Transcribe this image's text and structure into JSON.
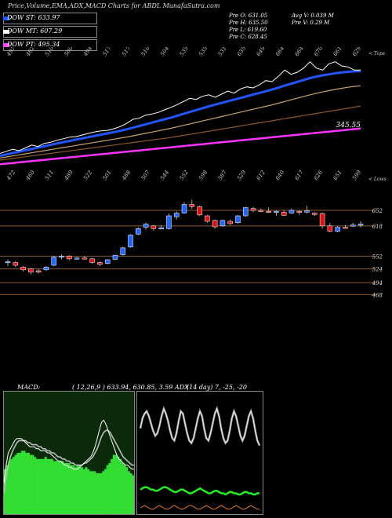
{
  "header": {
    "title": "Price,Volume,EMA,ADX,MACD Charts for ABDL MunafaSutra.com",
    "stats_col1": [
      "Pre O: 631.05",
      "Pre H: 635.50",
      "Pre L: 619.60",
      "Pre C: 628.45"
    ],
    "stats_col2": [
      "Avg V: 0.039 M",
      "Pre V: 0.29 M"
    ]
  },
  "legend": [
    {
      "label": "DOW ST: 633.97",
      "color": "#2255ff"
    },
    {
      "label": "DOW MT: 607.29",
      "color": "#ffffff"
    },
    {
      "label": "DOW PT: 495.34",
      "color": "#ff44ff"
    }
  ],
  "macd_label": "MACD:",
  "macd_values": "( 12,26,9 ) 633.94, 630.85, 3.59 ADX",
  "adx_values": "(14 day) 7, -25, -20",
  "chart_data": [
    {
      "type": "line",
      "name": "ema_panel",
      "top_axis_labels": [
        "497",
        "482",
        "510",
        "500",
        "494",
        "517",
        "517",
        "510",
        "504",
        "535",
        "535",
        "531",
        "635",
        "649",
        "664",
        "664",
        "670",
        "661",
        "629"
      ],
      "bottom_axis_labels": [
        "472",
        "460",
        "511",
        "489",
        "522",
        "501",
        "488",
        "507",
        "544",
        "552",
        "598",
        "587",
        "529",
        "612",
        "640",
        "617",
        "626",
        "651",
        "599"
      ],
      "corner_top": "< Tops",
      "corner_bottom": "< Lows",
      "value_label": "345.55",
      "price_line": [
        392,
        402,
        412,
        405,
        418,
        432,
        425,
        440,
        445,
        455,
        462,
        470,
        472,
        480,
        488,
        495,
        500,
        502,
        510,
        520,
        535,
        555,
        560,
        575,
        580,
        588,
        600,
        612,
        625,
        640,
        655,
        650,
        665,
        672,
        660,
        675,
        690,
        680,
        700,
        710,
        705,
        720,
        740,
        735,
        760,
        790,
        770,
        780,
        800,
        830,
        800,
        790,
        820,
        830,
        810,
        805,
        790,
        790
      ],
      "ema_fast": [
        380,
        387,
        394,
        400,
        407,
        413,
        420,
        426,
        433,
        439,
        446,
        452,
        458,
        464,
        470,
        476,
        482,
        488,
        494,
        500,
        507,
        515,
        523,
        531,
        539,
        547,
        555,
        563,
        572,
        581,
        590,
        599,
        608,
        617,
        625,
        633,
        641,
        649,
        657,
        665,
        673,
        681,
        689,
        697,
        706,
        716,
        725,
        734,
        743,
        752,
        759,
        765,
        770,
        775,
        779,
        782,
        784,
        785
      ],
      "ema_mid": [
        370,
        375,
        380,
        385,
        390,
        395,
        400,
        405,
        410,
        415,
        420,
        425,
        430,
        435,
        440,
        445,
        450,
        455,
        460,
        465,
        470,
        476,
        482,
        488,
        494,
        500,
        506,
        512,
        519,
        526,
        533,
        540,
        547,
        554,
        561,
        568,
        575,
        582,
        589,
        596,
        603,
        610,
        617,
        624,
        632,
        640,
        648,
        656,
        664,
        672,
        679,
        686,
        692,
        698,
        703,
        708,
        712,
        715
      ],
      "ema_slow": [
        360,
        364,
        368,
        372,
        376,
        380,
        384,
        388,
        392,
        396,
        400,
        404,
        408,
        412,
        416,
        420,
        424,
        428,
        432,
        436,
        440,
        444,
        448,
        452,
        456,
        460,
        464,
        468,
        473,
        478,
        483,
        488,
        493,
        498,
        503,
        508,
        513,
        518,
        523,
        528,
        533,
        538,
        543,
        548,
        553,
        558,
        563,
        568,
        573,
        578,
        583,
        588,
        593,
        598,
        603,
        608,
        613,
        618
      ],
      "ema_pt": [
        340,
        343,
        346,
        349,
        352,
        355,
        358,
        361,
        364,
        367,
        370,
        373,
        376,
        379,
        382,
        385,
        388,
        391,
        394,
        397,
        400,
        403,
        406,
        409,
        412,
        415,
        418,
        421,
        424,
        427,
        430,
        433,
        436,
        439,
        442,
        445,
        448,
        451,
        454,
        457,
        460,
        463,
        466,
        469,
        472,
        475,
        478,
        481,
        484,
        487,
        490,
        493,
        496,
        499,
        502,
        505,
        508,
        511
      ],
      "ylim": [
        300,
        900
      ]
    },
    {
      "type": "candlestick",
      "name": "price_panel",
      "y_ticks": [
        652,
        618,
        552,
        524,
        494,
        468
      ],
      "ylim": [
        460,
        700
      ],
      "candles": [
        {
          "o": 540,
          "h": 545,
          "l": 530,
          "c": 540
        },
        {
          "o": 538,
          "h": 541,
          "l": 528,
          "c": 532
        },
        {
          "o": 528,
          "h": 530,
          "l": 518,
          "c": 522
        },
        {
          "o": 524,
          "h": 526,
          "l": 512,
          "c": 517
        },
        {
          "o": 520,
          "h": 524,
          "l": 514,
          "c": 517
        },
        {
          "o": 522,
          "h": 530,
          "l": 520,
          "c": 528
        },
        {
          "o": 532,
          "h": 552,
          "l": 530,
          "c": 550
        },
        {
          "o": 552,
          "h": 556,
          "l": 545,
          "c": 552
        },
        {
          "o": 552,
          "h": 554,
          "l": 543,
          "c": 546
        },
        {
          "o": 546,
          "h": 550,
          "l": 544,
          "c": 548
        },
        {
          "o": 548,
          "h": 552,
          "l": 545,
          "c": 547
        },
        {
          "o": 546,
          "h": 548,
          "l": 535,
          "c": 538
        },
        {
          "o": 538,
          "h": 540,
          "l": 530,
          "c": 534
        },
        {
          "o": 536,
          "h": 545,
          "l": 534,
          "c": 544
        },
        {
          "o": 545,
          "h": 555,
          "l": 543,
          "c": 554
        },
        {
          "o": 555,
          "h": 572,
          "l": 553,
          "c": 570
        },
        {
          "o": 572,
          "h": 600,
          "l": 570,
          "c": 598
        },
        {
          "o": 600,
          "h": 615,
          "l": 598,
          "c": 612
        },
        {
          "o": 615,
          "h": 625,
          "l": 610,
          "c": 622
        },
        {
          "o": 618,
          "h": 620,
          "l": 608,
          "c": 612
        },
        {
          "o": 614,
          "h": 620,
          "l": 610,
          "c": 614
        },
        {
          "o": 612,
          "h": 645,
          "l": 610,
          "c": 640
        },
        {
          "o": 638,
          "h": 650,
          "l": 632,
          "c": 646
        },
        {
          "o": 646,
          "h": 670,
          "l": 645,
          "c": 665
        },
        {
          "o": 665,
          "h": 675,
          "l": 655,
          "c": 660
        },
        {
          "o": 660,
          "h": 662,
          "l": 640,
          "c": 642
        },
        {
          "o": 640,
          "h": 642,
          "l": 625,
          "c": 628
        },
        {
          "o": 630,
          "h": 632,
          "l": 612,
          "c": 616
        },
        {
          "o": 618,
          "h": 632,
          "l": 616,
          "c": 630
        },
        {
          "o": 628,
          "h": 632,
          "l": 620,
          "c": 623
        },
        {
          "o": 625,
          "h": 642,
          "l": 623,
          "c": 640
        },
        {
          "o": 640,
          "h": 660,
          "l": 638,
          "c": 658
        },
        {
          "o": 656,
          "h": 660,
          "l": 648,
          "c": 652
        },
        {
          "o": 652,
          "h": 656,
          "l": 648,
          "c": 650
        },
        {
          "o": 650,
          "h": 658,
          "l": 646,
          "c": 648
        },
        {
          "o": 648,
          "h": 652,
          "l": 640,
          "c": 650
        },
        {
          "o": 648,
          "h": 652,
          "l": 640,
          "c": 641
        },
        {
          "o": 646,
          "h": 656,
          "l": 644,
          "c": 652
        },
        {
          "o": 650,
          "h": 652,
          "l": 642,
          "c": 648
        },
        {
          "o": 648,
          "h": 662,
          "l": 645,
          "c": 651
        },
        {
          "o": 646,
          "h": 648,
          "l": 640,
          "c": 643
        },
        {
          "o": 645,
          "h": 647,
          "l": 612,
          "c": 618
        },
        {
          "o": 618,
          "h": 624,
          "l": 604,
          "c": 606
        },
        {
          "o": 606,
          "h": 618,
          "l": 604,
          "c": 615
        },
        {
          "o": 615,
          "h": 620,
          "l": 612,
          "c": 614
        },
        {
          "o": 618,
          "h": 625,
          "l": 616,
          "c": 620
        },
        {
          "o": 620,
          "h": 628,
          "l": 615,
          "c": 622
        }
      ]
    },
    {
      "type": "area",
      "name": "macd_panel",
      "histogram": [
        22,
        24,
        26,
        27,
        28,
        29,
        30,
        30,
        31,
        31,
        30,
        30,
        29,
        29,
        28,
        27,
        27,
        27,
        27,
        28,
        27,
        27,
        27,
        26,
        26,
        26,
        26,
        26,
        25,
        25,
        25,
        24,
        24,
        23,
        24,
        24,
        23,
        22,
        23,
        22,
        21,
        21,
        21,
        20,
        20,
        20,
        21,
        22,
        24,
        25,
        27,
        29,
        29,
        28,
        27,
        25,
        24,
        23,
        21,
        20,
        19
      ],
      "macd_line": [
        15,
        24,
        30,
        32,
        34,
        36,
        37,
        37,
        37,
        36,
        35,
        34,
        33,
        33,
        33,
        32,
        32,
        31,
        31,
        31,
        30,
        30,
        29,
        28,
        27,
        26,
        26,
        25,
        24,
        24,
        23,
        23,
        22,
        22,
        22,
        23,
        24,
        25,
        26,
        27,
        28,
        30,
        33,
        37,
        41,
        45,
        46,
        44,
        41,
        38,
        35,
        32,
        29,
        27,
        26,
        25,
        24,
        24,
        23,
        22,
        22
      ],
      "signal_line": [
        10,
        18,
        24,
        28,
        31,
        33,
        35,
        36,
        36,
        36,
        36,
        35,
        35,
        34,
        34,
        34,
        33,
        33,
        32,
        32,
        31,
        31,
        30,
        30,
        29,
        28,
        28,
        27,
        27,
        26,
        26,
        25,
        25,
        24,
        24,
        24,
        24,
        25,
        25,
        26,
        27,
        28,
        30,
        32,
        35,
        38,
        40,
        41,
        41,
        40,
        38,
        36,
        34,
        32,
        30,
        28,
        27,
        26,
        25,
        24,
        24
      ],
      "ylim": [
        0,
        60
      ]
    },
    {
      "type": "line",
      "name": "adx_panel",
      "adx_white": [
        70,
        78,
        82,
        84,
        80,
        74,
        68,
        64,
        66,
        72,
        80,
        86,
        82,
        76,
        68,
        62,
        60,
        66,
        76,
        84,
        82,
        74,
        66,
        60,
        58,
        62,
        70,
        78,
        84,
        80,
        70,
        62,
        60,
        66,
        74,
        82,
        86,
        80,
        70,
        62,
        58,
        60,
        68,
        78,
        84,
        80,
        72,
        64,
        60,
        64,
        72,
        80,
        84,
        78,
        68,
        60,
        56
      ],
      "adx_green": [
        20,
        21,
        22,
        22,
        21,
        20,
        20,
        19,
        19,
        20,
        21,
        22,
        22,
        21,
        20,
        19,
        18,
        18,
        19,
        20,
        20,
        19,
        18,
        17,
        17,
        18,
        19,
        20,
        21,
        20,
        19,
        18,
        17,
        17,
        18,
        19,
        19,
        18,
        17,
        17,
        16,
        17,
        18,
        18,
        17,
        17,
        16,
        16,
        17,
        18,
        18,
        17,
        17,
        16,
        16,
        17,
        17
      ],
      "adx_orange": [
        5,
        6,
        7,
        6,
        5,
        4,
        4,
        5,
        6,
        7,
        6,
        5,
        4,
        4,
        5,
        6,
        7,
        6,
        5,
        4,
        4,
        5,
        6,
        7,
        7,
        6,
        5,
        4,
        4,
        5,
        6,
        7,
        6,
        5,
        4,
        4,
        5,
        6,
        7,
        6,
        5,
        4,
        4,
        5,
        6,
        7,
        6,
        5,
        4,
        4,
        5,
        6,
        7,
        6,
        5,
        4,
        4
      ],
      "ylim": [
        0,
        100
      ]
    }
  ]
}
